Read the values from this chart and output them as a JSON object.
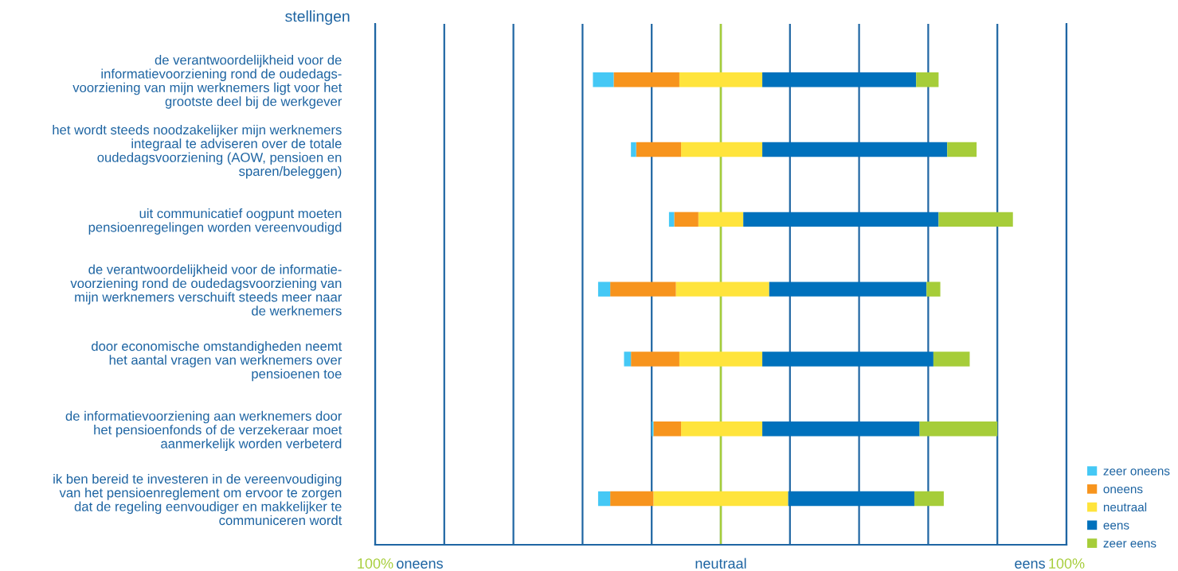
{
  "chart_data": {
    "type": "bar",
    "orientation": "horizontal",
    "stacked": true,
    "ylabel": "stellingen",
    "categories": [
      "de verantwoordelijkheid voor de\ninformatievoorziening rond de oudedags-\nvoorziening van mijn werknemers ligt voor het\ngrootste deel bij de werkgever",
      "het wordt steeds noodzakelijker mijn werknemers\nintegraal te adviseren over de totale\noudedagsvoorziening (AOW, pensioen en\nsparen/beleggen)",
      "uit communicatief oogpunt moeten\npensioenregelingen worden vereenvoudigd",
      "de verantwoordelijkheid voor de informatie-\nvoorziening rond de oudedagsvoorziening van\nmijn werknemers verschuift steeds meer naar\nde werknemers",
      "door economische omstandigheden neemt\nhet aantal vragen van werknemers over\npensioenen toe",
      "de informatievoorziening aan werknemers door\nhet pensioenfonds of de verzekeraar moet\naanmerkelijk worden verbeterd",
      "ik ben bereid te investeren in de vereenvoudiging\nvan het pensioenreglement om ervoor te zorgen\ndat de regeling eenvoudiger en makkelijker te\ncommuniceren wordt"
    ],
    "series": [
      {
        "color": "#ffe43c",
        "values": [
          -12,
          -11.5,
          -6.5,
          -13,
          -12,
          -11.5,
          -19.5
        ]
      },
      {
        "name": "neutraal",
        "color": "#ffe43c",
        "values": [
          12,
          12,
          6.5,
          14,
          12,
          12,
          19.5
        ]
      },
      {
        "name": "oneens",
        "color": "#f7941d",
        "values": [
          -19,
          -13,
          -7,
          -19,
          -14,
          -8,
          -12.5
        ]
      },
      {
        "name": "eens",
        "color": "#0071bc",
        "values": [
          44.5,
          53.5,
          56.5,
          45.5,
          49.5,
          45.5,
          36.5
        ]
      },
      {
        "name": "zeer oneens",
        "color": "#45c8f5",
        "values": [
          -6,
          -1.5,
          -1.5,
          -3.5,
          -2,
          -0.5,
          -3.5
        ]
      },
      {
        "name": "zeer eens",
        "color": "#a6cd39",
        "values": [
          6.5,
          8.5,
          21.5,
          4,
          10.5,
          22.5,
          8.5
        ]
      }
    ],
    "xlim": [
      -100,
      100
    ],
    "xticks": [
      {
        "value": -100,
        "label": "100%"
      },
      {
        "value": -80,
        "label": null
      },
      {
        "value": -60,
        "label": null
      },
      {
        "value": -40,
        "label": null
      },
      {
        "value": -20,
        "label": null
      },
      {
        "value": 0,
        "label": "neutraal"
      },
      {
        "value": 20,
        "label": null
      },
      {
        "value": 40,
        "label": null
      },
      {
        "value": 60,
        "label": null
      },
      {
        "value": 80,
        "label": null
      },
      {
        "value": 100,
        "label": "100%"
      }
    ],
    "annotations": [
      "oneens",
      "eens"
    ],
    "grid": "x",
    "ref_lines": [
      {
        "axis": "x",
        "value": 0,
        "color": "#a6cd39"
      }
    ],
    "legend": "bottom right"
  }
}
